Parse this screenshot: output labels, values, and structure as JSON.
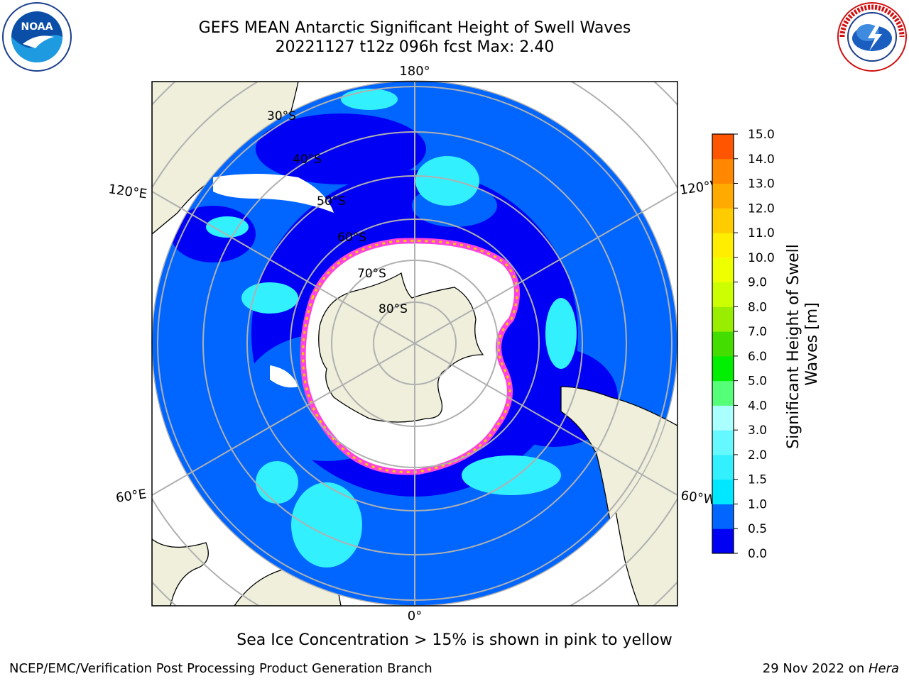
{
  "title": {
    "line1": "GEFS MEAN Antarctic Significant Height of Swell Waves",
    "line2": "20221127 t12z 096h fcst   Max: 2.40"
  },
  "logos": {
    "left": {
      "name": "noaa-logo",
      "text": "NOAA"
    },
    "right": {
      "name": "nws-logo",
      "text": "NATIONAL WEATHER SERVICE"
    }
  },
  "map": {
    "projection": "south-polar-stereographic",
    "longitude_labels": {
      "top": "180°",
      "bottom": "0°",
      "upper_left": "120°E",
      "upper_right": "120°W",
      "lower_left": "60°E",
      "lower_right": "60°W"
    },
    "latitude_labels": [
      "30°S",
      "40°S",
      "50°S",
      "60°S",
      "70°S",
      "80°S"
    ],
    "colors": {
      "ocean_low": "#0000f5",
      "ocean_mid": "#0066ff",
      "ocean_high": "#00e8ff",
      "land": "#efefdc",
      "ice": "#ffffff",
      "ice_edge": "#ff44dd",
      "grid": "#b0b0b0"
    }
  },
  "colorbar": {
    "title_line1": "Significant Height of Swell",
    "title_line2": "Waves [m]",
    "ticks": [
      "0.0",
      "0.5",
      "1.0",
      "1.5",
      "2.0",
      "3.0",
      "4.0",
      "5.0",
      "6.0",
      "7.0",
      "8.0",
      "9.0",
      "10.0",
      "11.0",
      "12.0",
      "13.0",
      "14.0",
      "15.0"
    ],
    "colors": [
      "#0000f5",
      "#0066ff",
      "#00e8ff",
      "#33f0ff",
      "#66f8ff",
      "#aaffff",
      "#55ff77",
      "#00ee00",
      "#44dd00",
      "#99ee00",
      "#ccff00",
      "#eeff00",
      "#ffee00",
      "#ffcc00",
      "#ffaa00",
      "#ff8800",
      "#ff5500",
      "#ff2200",
      "#ff0000"
    ]
  },
  "note": "Sea Ice Concentration > 15% is shown in pink to yellow",
  "footer": {
    "left": "NCEP/EMC/Verification Post Processing Product Generation Branch",
    "right_date": "29 Nov 2022 on ",
    "right_host": "Hera"
  }
}
